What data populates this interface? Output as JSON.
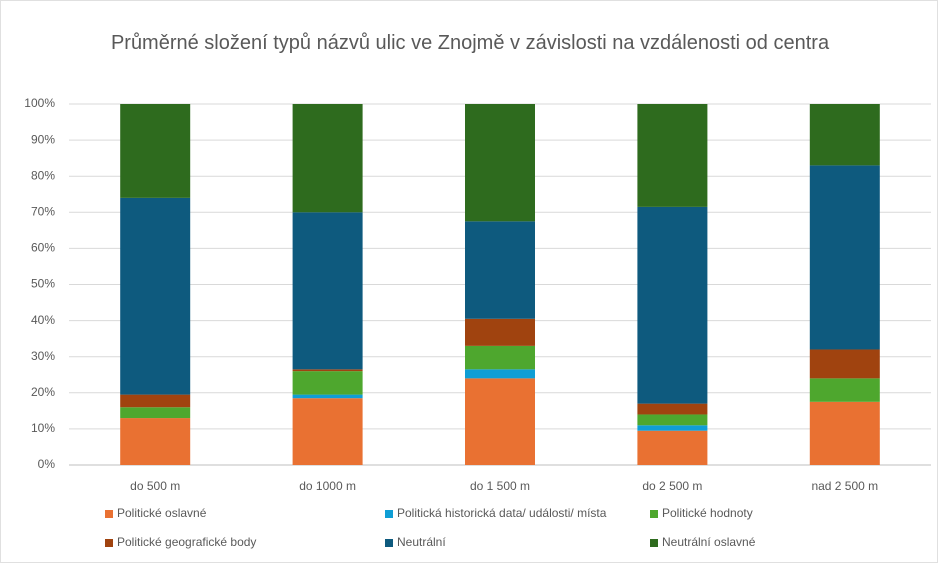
{
  "chart_data": {
    "type": "stacked_bar",
    "title": "Průměrné složení typů názvů ulic ve Znojmě v závislosti na vzdálenosti od centra",
    "categories": [
      "do 500 m",
      "do 1000 m",
      "do 1 500 m",
      "do 2 500 m",
      "nad 2 500 m"
    ],
    "series": [
      {
        "name": "Politické oslavné",
        "color": "#e97132",
        "values": [
          13,
          18.5,
          24,
          9.5,
          17.5
        ]
      },
      {
        "name": "Politická historická data/ události/ místa",
        "color": "#0f9ed5",
        "values": [
          0,
          1,
          2.5,
          1.5,
          0
        ]
      },
      {
        "name": "Politické hodnoty",
        "color": "#4ea72e",
        "values": [
          3,
          6.5,
          6.5,
          3,
          6.5
        ]
      },
      {
        "name": "Politické geografické body",
        "color": "#a0430f",
        "values": [
          3.5,
          0.5,
          7.5,
          3,
          8
        ]
      },
      {
        "name": "Neutrální",
        "color": "#0e5a7e",
        "values": [
          54.5,
          43.5,
          27,
          54.5,
          51
        ]
      },
      {
        "name": "Neutrální oslavné",
        "color": "#2e6b1e",
        "values": [
          26,
          30,
          32.5,
          28.5,
          17
        ]
      }
    ],
    "ylim": [
      0,
      100
    ],
    "yticks": [
      {
        "value": 0,
        "label": "0%"
      },
      {
        "value": 10,
        "label": "10%"
      },
      {
        "value": 20,
        "label": "20%"
      },
      {
        "value": 30,
        "label": "30%"
      },
      {
        "value": 40,
        "label": "40%"
      },
      {
        "value": 50,
        "label": "50%"
      },
      {
        "value": 60,
        "label": "60%"
      },
      {
        "value": 70,
        "label": "70%"
      },
      {
        "value": 80,
        "label": "80%"
      },
      {
        "value": 90,
        "label": "90%"
      },
      {
        "value": 100,
        "label": "100%"
      }
    ],
    "grid": true,
    "legend": "bottom"
  }
}
